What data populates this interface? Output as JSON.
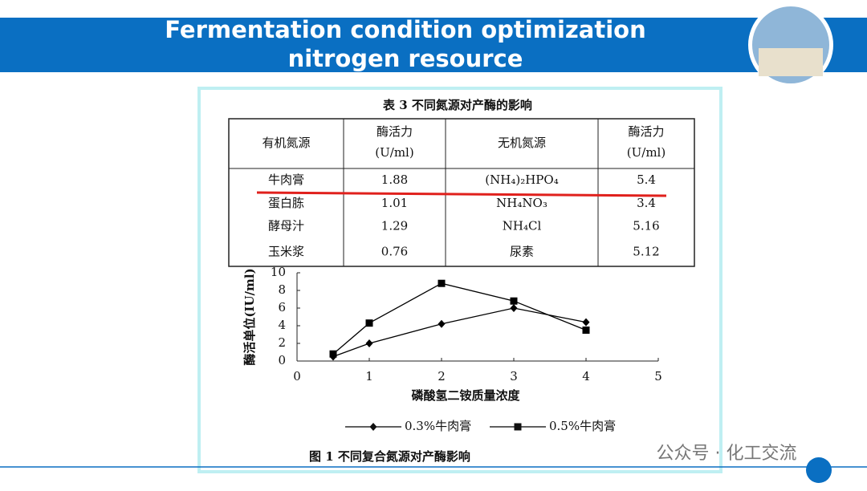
{
  "header": {
    "title_lines": [
      "Fermentation condition optimization",
      "nitrogen resource"
    ]
  },
  "table": {
    "title": "表 3   不同氮源对产酶的影响",
    "columns": [
      [
        "有机氮源"
      ],
      [
        "酶活力",
        "(U/ml)"
      ],
      [
        "无机氮源"
      ],
      [
        "酶活力",
        "(U/ml)"
      ]
    ],
    "rows": [
      [
        "牛肉膏",
        1.88,
        "(NH₄)₂HPO₄",
        5.4
      ],
      [
        "蛋白胨",
        1.01,
        "NH₄NO₃",
        3.4
      ],
      [
        "酵母汁",
        1.29,
        "NH₄Cl",
        5.16
      ],
      [
        "玉米浆",
        0.76,
        "尿素",
        5.12
      ]
    ]
  },
  "chart_data": {
    "type": "line",
    "x": [
      0.5,
      1,
      2,
      3,
      4
    ],
    "series": [
      {
        "name": "0.3%牛肉膏",
        "color": "#000000",
        "marker": "diamond",
        "values": [
          0.5,
          2,
          4.2,
          6,
          4.4
        ]
      },
      {
        "name": "0.5%牛肉膏",
        "color": "#000000",
        "marker": "square",
        "values": [
          0.8,
          4.3,
          8.8,
          6.8,
          3.5
        ]
      }
    ],
    "xlim": [
      0,
      5
    ],
    "xticks": [
      0,
      1,
      2,
      3,
      4,
      5
    ],
    "ylim": [
      0,
      10
    ],
    "yticks": [
      0,
      2,
      4,
      6,
      8,
      10
    ],
    "x_label": "磷酸氢二铵质量浓度",
    "y_label": "酶活单位(IU/ml)",
    "caption": "图 1    不同复合氮源对产酶影响"
  },
  "watermark": "公众号 · 化工交流"
}
